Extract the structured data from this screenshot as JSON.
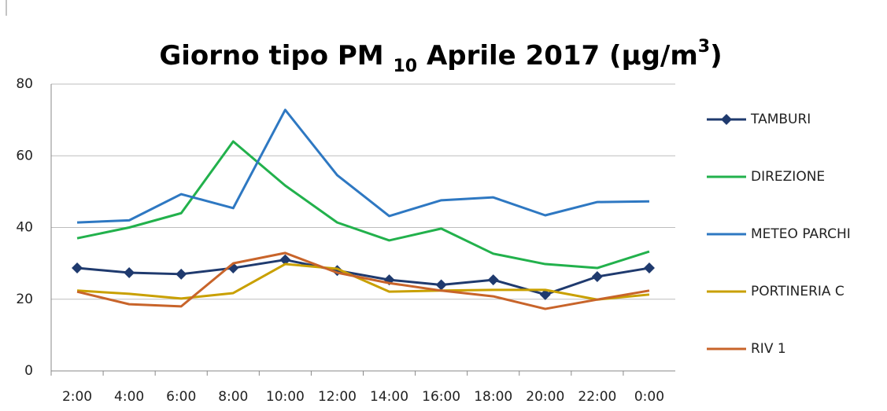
{
  "chart_data": {
    "type": "line",
    "title": [
      "Giorno tipo PM ",
      "10",
      " Aprile 2017 (µg/m",
      "3",
      ")"
    ],
    "categories": [
      "2:00",
      "4:00",
      "6:00",
      "8:00",
      "10:00",
      "12:00",
      "14:00",
      "16:00",
      "18:00",
      "20:00",
      "22:00",
      "0:00"
    ],
    "series": [
      {
        "name": "TAMBURI",
        "color": "#1f3a6e",
        "marker": "diamond",
        "values": [
          28.7,
          27.4,
          27,
          28.7,
          31,
          28,
          25.4,
          24,
          25.4,
          21.3,
          26.3,
          28.7
        ]
      },
      {
        "name": "DIREZIONE",
        "color": "#22b14c",
        "values": [
          37,
          40,
          44,
          64,
          51.7,
          41.4,
          36.4,
          39.7,
          32.7,
          29.8,
          28.7,
          33.3
        ]
      },
      {
        "name": "METEO PARCHI",
        "color": "#2e78c2",
        "values": [
          41.4,
          42,
          49.3,
          45.4,
          72.8,
          54.6,
          43.2,
          47.6,
          48.4,
          43.4,
          47.1,
          47.3
        ]
      },
      {
        "name": "PORTINERIA C",
        "color": "#c9a000",
        "values": [
          22.4,
          21.5,
          20.2,
          21.7,
          29.8,
          28.5,
          22.1,
          22.4,
          22.6,
          22.6,
          19.9,
          21.3
        ]
      },
      {
        "name": "RIV 1",
        "color": "#c8642a",
        "values": [
          22.1,
          18.6,
          18,
          30,
          32.9,
          27.4,
          24.5,
          22.4,
          20.8,
          17.3,
          19.9,
          22.4
        ]
      }
    ],
    "ylim": [
      0,
      80
    ],
    "yticks": [
      0,
      20,
      40,
      60,
      80
    ],
    "grid": true,
    "legend": "right"
  }
}
